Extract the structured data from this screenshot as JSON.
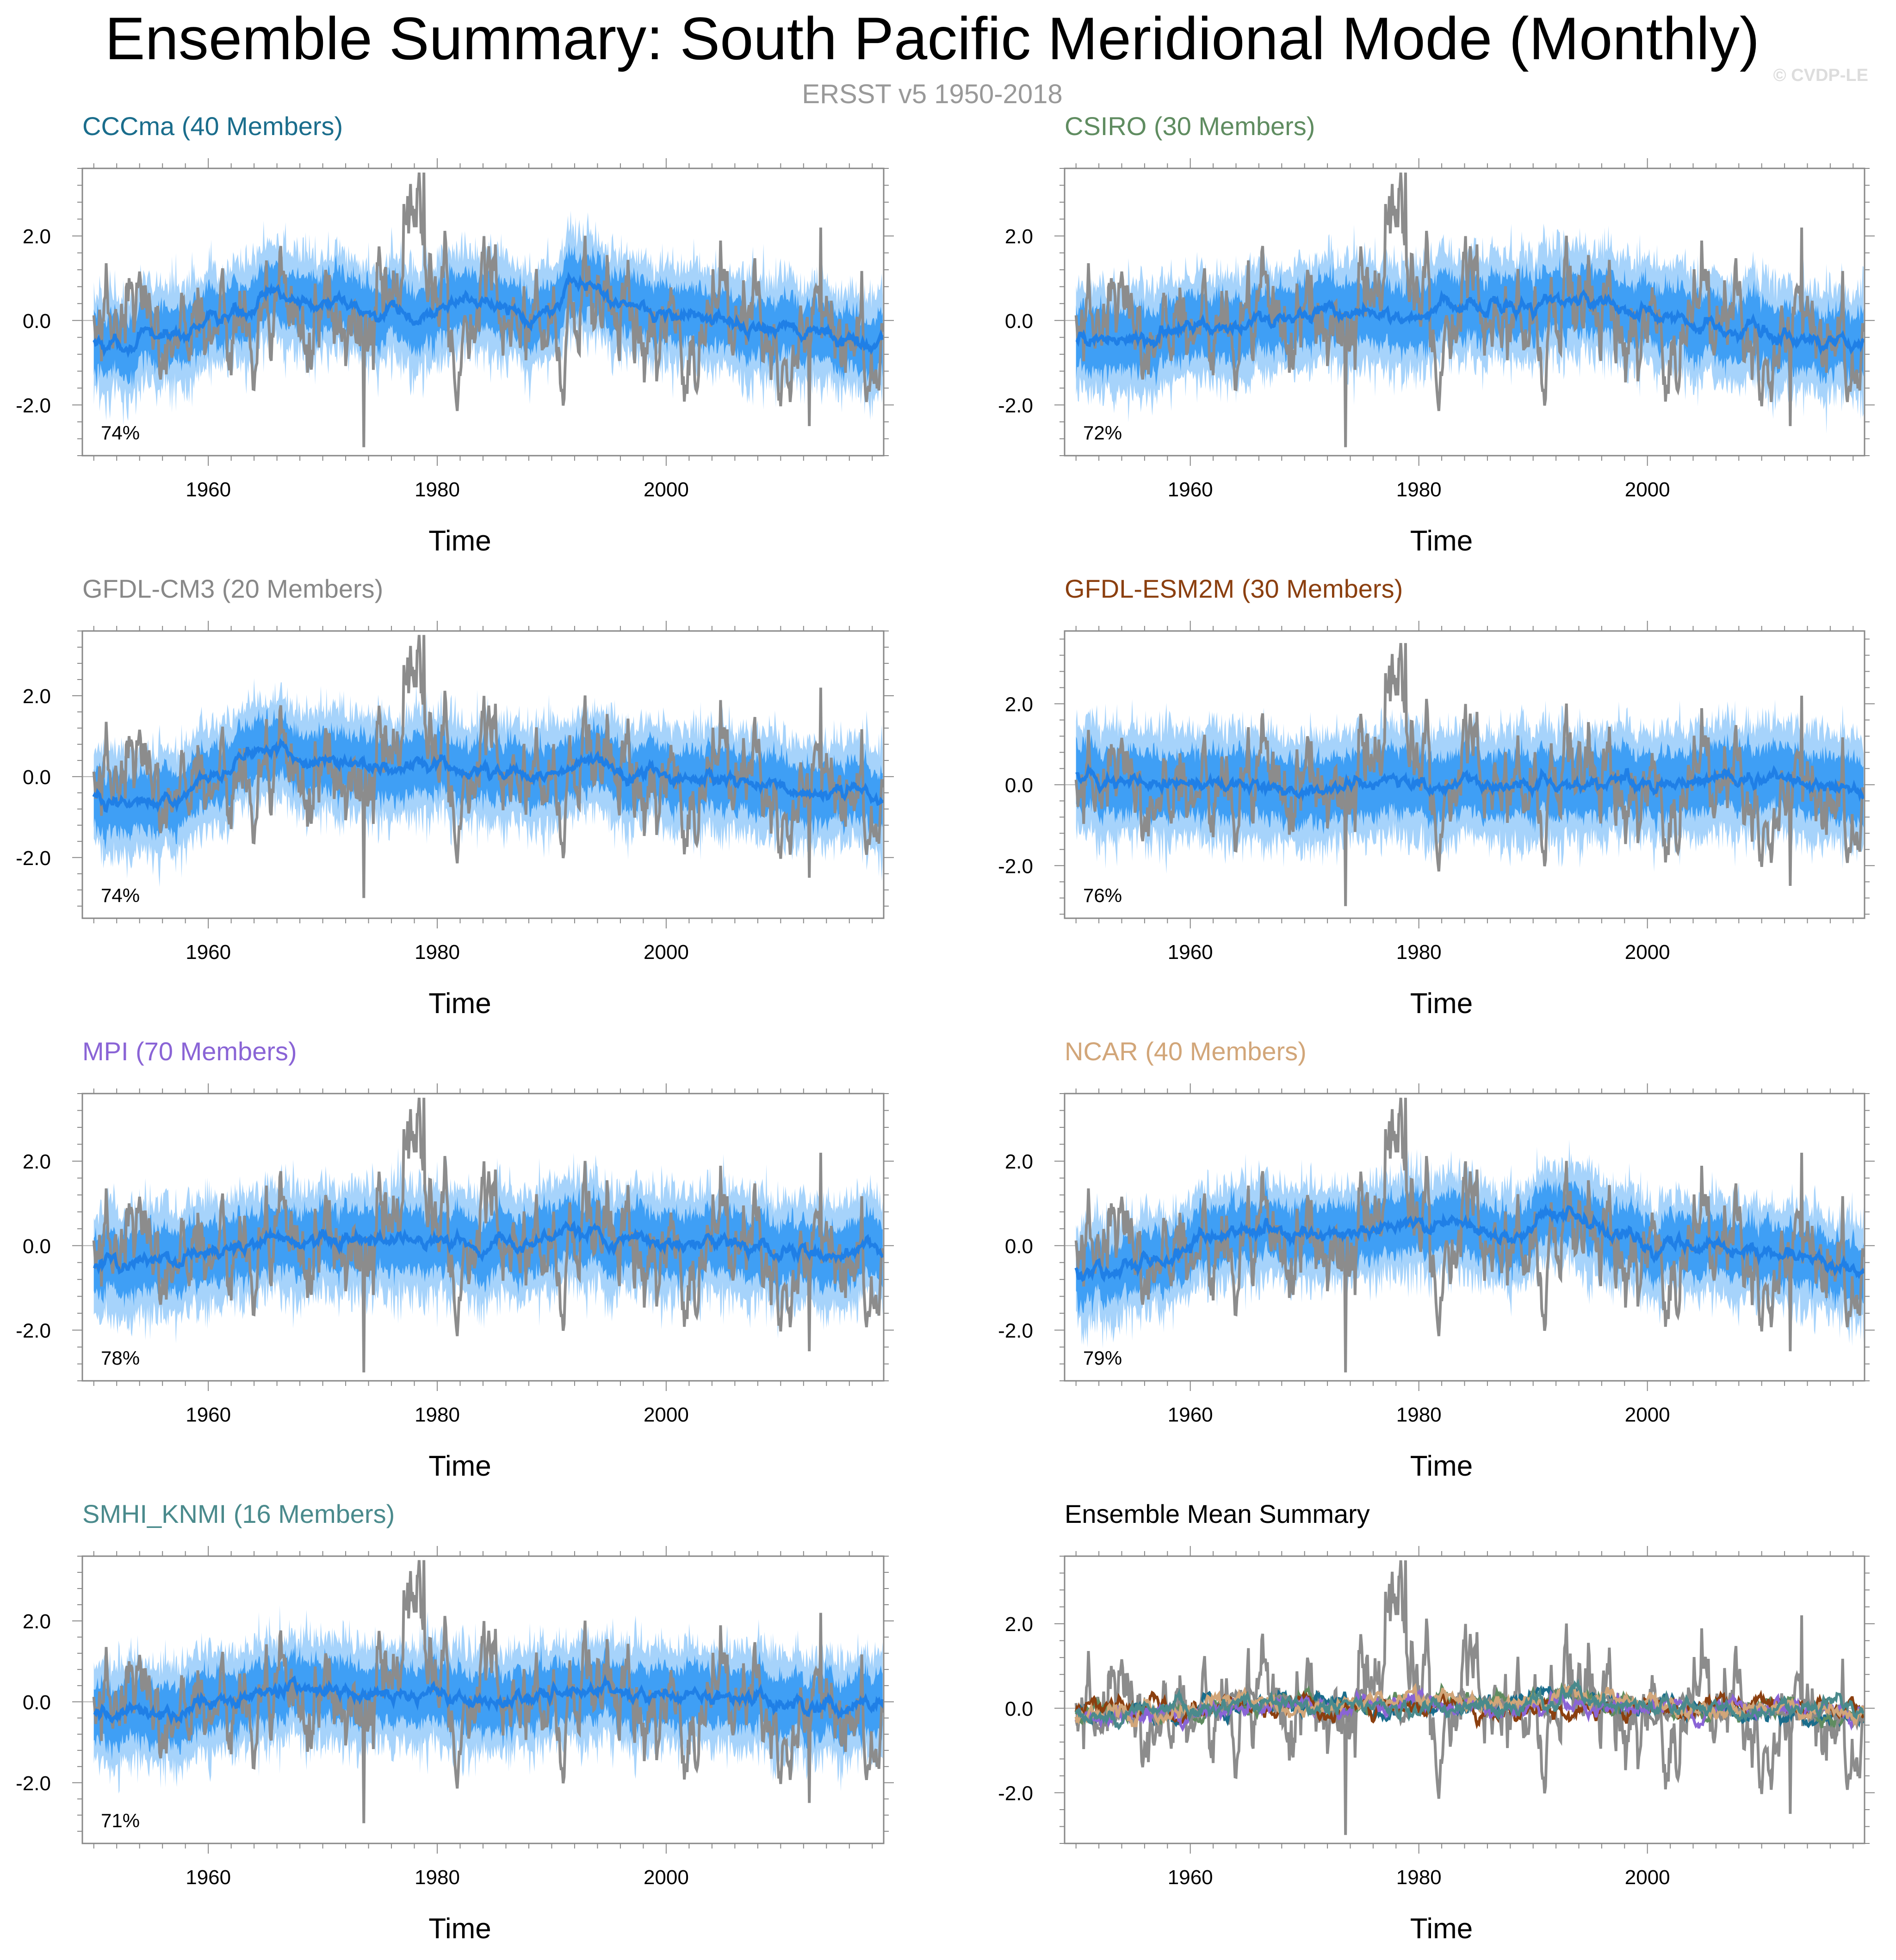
{
  "header": {
    "title": "Ensemble Summary: South Pacific Meridional Mode (Monthly)",
    "subtitle": "ERSST v5 1950-2018",
    "copyright": "© CVDP-LE"
  },
  "colors": {
    "observed": "#8c8c8c",
    "spread_outer": "#a6d3fb",
    "spread_inner": "#3f9ff5",
    "ensemble_mean": "#1f7fe6",
    "zero_line": "#b4b4b4"
  },
  "chart_data": [
    {
      "type": "line",
      "title": "CCCma (40 Members)",
      "title_color": "#1a6d8c",
      "xlabel": "Time",
      "xlim": [
        1949,
        2019
      ],
      "ylim": [
        -3.2,
        3.6
      ],
      "x_ticks": [
        1960,
        1980,
        2000
      ],
      "y_ticks": [
        2.0,
        0.0,
        -2.0
      ],
      "y_tick_labels": [
        "2.0",
        "0.0",
        "-2.0"
      ],
      "percent_label": "74%",
      "series": [
        {
          "name": "ERSST v5 (observed)",
          "color": "#8c8c8c"
        },
        {
          "name": "Ensemble mean",
          "color": "#1f7fe6"
        }
      ],
      "ensemble_mean_keypoints": [
        [
          1950,
          -0.6
        ],
        [
          1958,
          -0.3
        ],
        [
          1966,
          0.6
        ],
        [
          1972,
          0.3
        ],
        [
          1978,
          0.0
        ],
        [
          1983,
          0.6
        ],
        [
          1988,
          0.0
        ],
        [
          1992,
          1.0
        ],
        [
          1995,
          0.5
        ],
        [
          2000,
          0.2
        ],
        [
          2008,
          -0.2
        ],
        [
          2018,
          -0.5
        ]
      ],
      "spread_halfwidth": 0.9
    },
    {
      "type": "line",
      "title": "CSIRO (30 Members)",
      "title_color": "#5f8c60",
      "xlabel": "Time",
      "xlim": [
        1949,
        2019
      ],
      "ylim": [
        -3.2,
        3.6
      ],
      "x_ticks": [
        1960,
        1980,
        2000
      ],
      "y_ticks": [
        2.0,
        0.0,
        -2.0
      ],
      "y_tick_labels": [
        "2.0",
        "0.0",
        "-2.0"
      ],
      "percent_label": "72%",
      "series": [
        {
          "name": "ERSST v5 (observed)",
          "color": "#8c8c8c"
        },
        {
          "name": "Ensemble mean",
          "color": "#1f7fe6"
        }
      ],
      "ensemble_mean_keypoints": [
        [
          1950,
          -0.5
        ],
        [
          1958,
          -0.3
        ],
        [
          1966,
          0.1
        ],
        [
          1972,
          0.2
        ],
        [
          1978,
          0.1
        ],
        [
          1984,
          0.3
        ],
        [
          1989,
          0.3
        ],
        [
          1993,
          0.6
        ],
        [
          1998,
          0.3
        ],
        [
          2004,
          0.0
        ],
        [
          2010,
          -0.2
        ],
        [
          2018,
          -0.6
        ]
      ],
      "spread_halfwidth": 1.0
    },
    {
      "type": "line",
      "title": "GFDL-CM3 (20 Members)",
      "title_color": "#888888",
      "xlabel": "Time",
      "xlim": [
        1949,
        2019
      ],
      "ylim": [
        -3.5,
        3.6
      ],
      "x_ticks": [
        1960,
        1980,
        2000
      ],
      "y_ticks": [
        2.0,
        0.0,
        -2.0
      ],
      "y_tick_labels": [
        "2.0",
        "0.0",
        "-2.0"
      ],
      "percent_label": "74%",
      "series": [
        {
          "name": "ERSST v5 (observed)",
          "color": "#8c8c8c"
        },
        {
          "name": "Ensemble mean",
          "color": "#1f7fe6"
        }
      ],
      "ensemble_mean_keypoints": [
        [
          1950,
          -0.6
        ],
        [
          1958,
          -0.4
        ],
        [
          1965,
          0.7
        ],
        [
          1970,
          0.3
        ],
        [
          1978,
          0.3
        ],
        [
          1985,
          0.1
        ],
        [
          1990,
          0.0
        ],
        [
          1993,
          0.6
        ],
        [
          1997,
          0.1
        ],
        [
          2005,
          -0.2
        ],
        [
          2012,
          -0.3
        ],
        [
          2018,
          -0.5
        ]
      ],
      "spread_halfwidth": 1.0
    },
    {
      "type": "line",
      "title": "GFDL-ESM2M (30 Members)",
      "title_color": "#8b3f0f",
      "xlabel": "Time",
      "xlim": [
        1949,
        2019
      ],
      "ylim": [
        -3.3,
        3.8
      ],
      "x_ticks": [
        1960,
        1980,
        2000
      ],
      "y_ticks": [
        2.0,
        0.0,
        -2.0
      ],
      "y_tick_labels": [
        "2.0",
        "0.0",
        "-2.0"
      ],
      "percent_label": "76%",
      "series": [
        {
          "name": "ERSST v5 (observed)",
          "color": "#8c8c8c"
        },
        {
          "name": "Ensemble mean",
          "color": "#1f7fe6"
        }
      ],
      "ensemble_mean_keypoints": [
        [
          1950,
          0.2
        ],
        [
          1958,
          0.0
        ],
        [
          1966,
          0.0
        ],
        [
          1972,
          -0.1
        ],
        [
          1978,
          0.1
        ],
        [
          1985,
          0.0
        ],
        [
          1992,
          0.0
        ],
        [
          2000,
          0.1
        ],
        [
          2008,
          0.1
        ],
        [
          2015,
          0.1
        ],
        [
          2018,
          -0.1
        ]
      ],
      "spread_halfwidth": 1.1
    },
    {
      "type": "line",
      "title": "MPI (70 Members)",
      "title_color": "#8a64d6",
      "xlabel": "Time",
      "xlim": [
        1949,
        2019
      ],
      "ylim": [
        -3.2,
        3.6
      ],
      "x_ticks": [
        1960,
        1980,
        2000
      ],
      "y_ticks": [
        2.0,
        0.0,
        -2.0
      ],
      "y_tick_labels": [
        "2.0",
        "0.0",
        "-2.0"
      ],
      "percent_label": "78%",
      "series": [
        {
          "name": "ERSST v5 (observed)",
          "color": "#8c8c8c"
        },
        {
          "name": "Ensemble mean",
          "color": "#1f7fe6"
        }
      ],
      "ensemble_mean_keypoints": [
        [
          1950,
          -0.5
        ],
        [
          1958,
          -0.3
        ],
        [
          1965,
          0.2
        ],
        [
          1972,
          0.1
        ],
        [
          1978,
          0.2
        ],
        [
          1985,
          0.0
        ],
        [
          1992,
          0.3
        ],
        [
          1998,
          0.1
        ],
        [
          2005,
          0.0
        ],
        [
          2012,
          -0.2
        ],
        [
          2018,
          -0.1
        ]
      ],
      "spread_halfwidth": 1.0
    },
    {
      "type": "line",
      "title": "NCAR (40 Members)",
      "title_color": "#d2a679",
      "xlabel": "Time",
      "xlim": [
        1949,
        2019
      ],
      "ylim": [
        -3.2,
        3.6
      ],
      "x_ticks": [
        1960,
        1980,
        2000
      ],
      "y_ticks": [
        2.0,
        0.0,
        -2.0
      ],
      "y_tick_labels": [
        "2.0",
        "0.0",
        "-2.0"
      ],
      "percent_label": "79%",
      "series": [
        {
          "name": "ERSST v5 (observed)",
          "color": "#8c8c8c"
        },
        {
          "name": "Ensemble mean",
          "color": "#1f7fe6"
        }
      ],
      "ensemble_mean_keypoints": [
        [
          1950,
          -0.6
        ],
        [
          1958,
          -0.3
        ],
        [
          1965,
          0.5
        ],
        [
          1970,
          0.2
        ],
        [
          1977,
          0.4
        ],
        [
          1983,
          0.6
        ],
        [
          1988,
          0.1
        ],
        [
          1993,
          0.9
        ],
        [
          1997,
          0.2
        ],
        [
          2005,
          -0.1
        ],
        [
          2012,
          -0.2
        ],
        [
          2018,
          -0.5
        ]
      ],
      "spread_halfwidth": 0.9
    },
    {
      "type": "line",
      "title": "SMHI_KNMI (16 Members)",
      "title_color": "#4a8a8c",
      "xlabel": "Time",
      "xlim": [
        1949,
        2019
      ],
      "ylim": [
        -3.5,
        3.6
      ],
      "x_ticks": [
        1960,
        1980,
        2000
      ],
      "y_ticks": [
        2.0,
        0.0,
        -2.0
      ],
      "y_tick_labels": [
        "2.0",
        "0.0",
        "-2.0"
      ],
      "percent_label": "71%",
      "series": [
        {
          "name": "ERSST v5 (observed)",
          "color": "#8c8c8c"
        },
        {
          "name": "Ensemble mean",
          "color": "#1f7fe6"
        }
      ],
      "ensemble_mean_keypoints": [
        [
          1950,
          -0.4
        ],
        [
          1958,
          -0.2
        ],
        [
          1965,
          0.3
        ],
        [
          1972,
          0.2
        ],
        [
          1978,
          0.1
        ],
        [
          1985,
          0.0
        ],
        [
          1992,
          0.4
        ],
        [
          1998,
          0.2
        ],
        [
          2005,
          0.1
        ],
        [
          2012,
          -0.1
        ],
        [
          2018,
          0.0
        ]
      ],
      "spread_halfwidth": 1.0
    },
    {
      "type": "line",
      "title": "Ensemble Mean Summary",
      "title_color": "#000000",
      "xlabel": "Time",
      "xlim": [
        1949,
        2019
      ],
      "ylim": [
        -3.2,
        3.6
      ],
      "x_ticks": [
        1960,
        1980,
        2000
      ],
      "y_ticks": [
        2.0,
        0.0,
        -2.0
      ],
      "y_tick_labels": [
        "2.0",
        "0.0",
        "-2.0"
      ],
      "percent_label": "",
      "series": [
        {
          "name": "ERSST v5 (observed)",
          "color": "#8c8c8c"
        },
        {
          "name": "CCCma",
          "color": "#1a6d8c"
        },
        {
          "name": "CSIRO",
          "color": "#5f8c60"
        },
        {
          "name": "GFDL-CM3",
          "color": "#888888"
        },
        {
          "name": "GFDL-ESM2M",
          "color": "#8b3f0f"
        },
        {
          "name": "MPI",
          "color": "#8a64d6"
        },
        {
          "name": "NCAR",
          "color": "#d2a679"
        },
        {
          "name": "SMHI_KNMI",
          "color": "#4a8a8c"
        }
      ]
    }
  ]
}
